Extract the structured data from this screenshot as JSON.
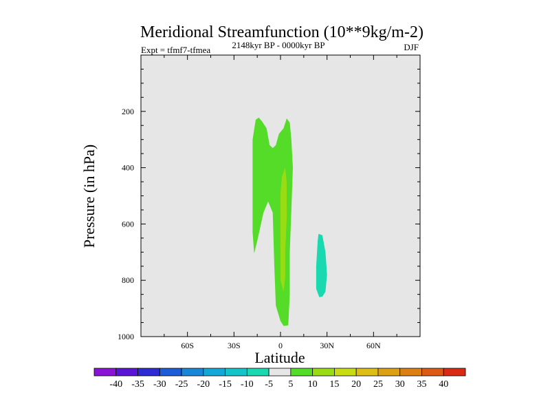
{
  "chart_data": {
    "type": "contour-map",
    "title": "Meridional Streamfunction (10**9kg/m-2)",
    "left_label": "Expt = tfmf7-tfmea",
    "center_label": "2148kyr BP - 0000kyr BP",
    "right_label": "DJF",
    "xlabel": "Latitude",
    "ylabel": "Pressure (in hPa)",
    "xlim": [
      -90,
      90
    ],
    "ylim": [
      1000,
      0
    ],
    "x_ticks": [
      {
        "value": -60,
        "label": "60S"
      },
      {
        "value": -30,
        "label": "30S"
      },
      {
        "value": 0,
        "label": "0"
      },
      {
        "value": 30,
        "label": "30N"
      },
      {
        "value": 60,
        "label": "60N"
      }
    ],
    "y_ticks": [
      {
        "value": 200,
        "label": "200"
      },
      {
        "value": 400,
        "label": "400"
      },
      {
        "value": 600,
        "label": "600"
      },
      {
        "value": 800,
        "label": "800"
      },
      {
        "value": 1000,
        "label": "1000"
      }
    ],
    "background_color": "#e6e6e6",
    "colorbar": {
      "labels": [
        "-40",
        "-35",
        "-30",
        "-25",
        "-20",
        "-15",
        "-10",
        "-5",
        "5",
        "10",
        "15",
        "20",
        "25",
        "30",
        "35",
        "40"
      ],
      "colors": [
        "#8a14d6",
        "#5a14d6",
        "#2d2ad6",
        "#1c5cd6",
        "#1a86d8",
        "#14a8d8",
        "#14c4c8",
        "#1ad8b0",
        "#e6e6e6",
        "#55dc28",
        "#9adc14",
        "#c8dc14",
        "#dcbe14",
        "#dca014",
        "#dc8014",
        "#dc5a14",
        "#d82a14"
      ]
    },
    "regions": [
      {
        "level": "5 to 10",
        "color": "#55dc28",
        "points": [
          [
            -17,
            705
          ],
          [
            -18,
            630
          ],
          [
            -18,
            450
          ],
          [
            -18,
            300
          ],
          [
            -16,
            230
          ],
          [
            -14,
            222
          ],
          [
            -12,
            235
          ],
          [
            -9,
            260
          ],
          [
            -7,
            320
          ],
          [
            -5,
            330
          ],
          [
            -3,
            320
          ],
          [
            -1,
            280
          ],
          [
            2,
            260
          ],
          [
            4,
            225
          ],
          [
            6,
            240
          ],
          [
            7,
            300
          ],
          [
            8,
            400
          ],
          [
            7,
            550
          ],
          [
            6,
            700
          ],
          [
            6,
            850
          ],
          [
            5,
            960
          ],
          [
            2,
            962
          ],
          [
            0,
            945
          ],
          [
            -3,
            890
          ],
          [
            -4,
            750
          ],
          [
            -5,
            560
          ],
          [
            -8,
            520
          ],
          [
            -11,
            560
          ],
          [
            -13,
            610
          ],
          [
            -15,
            660
          ]
        ]
      },
      {
        "level": "10 to 15",
        "color": "#9adc14",
        "points": [
          [
            0,
            490
          ],
          [
            1,
            430
          ],
          [
            3,
            400
          ],
          [
            4,
            450
          ],
          [
            4,
            580
          ],
          [
            3,
            700
          ],
          [
            3,
            790
          ],
          [
            2,
            840
          ],
          [
            0,
            800
          ],
          [
            0,
            650
          ]
        ]
      },
      {
        "level": "-10 to -5",
        "color": "#1ad8b0",
        "points": [
          [
            23,
            830
          ],
          [
            23,
            750
          ],
          [
            24,
            660
          ],
          [
            24.5,
            635
          ],
          [
            27,
            640
          ],
          [
            29,
            700
          ],
          [
            30,
            780
          ],
          [
            29,
            840
          ],
          [
            27,
            858
          ],
          [
            25,
            860
          ]
        ]
      }
    ]
  }
}
